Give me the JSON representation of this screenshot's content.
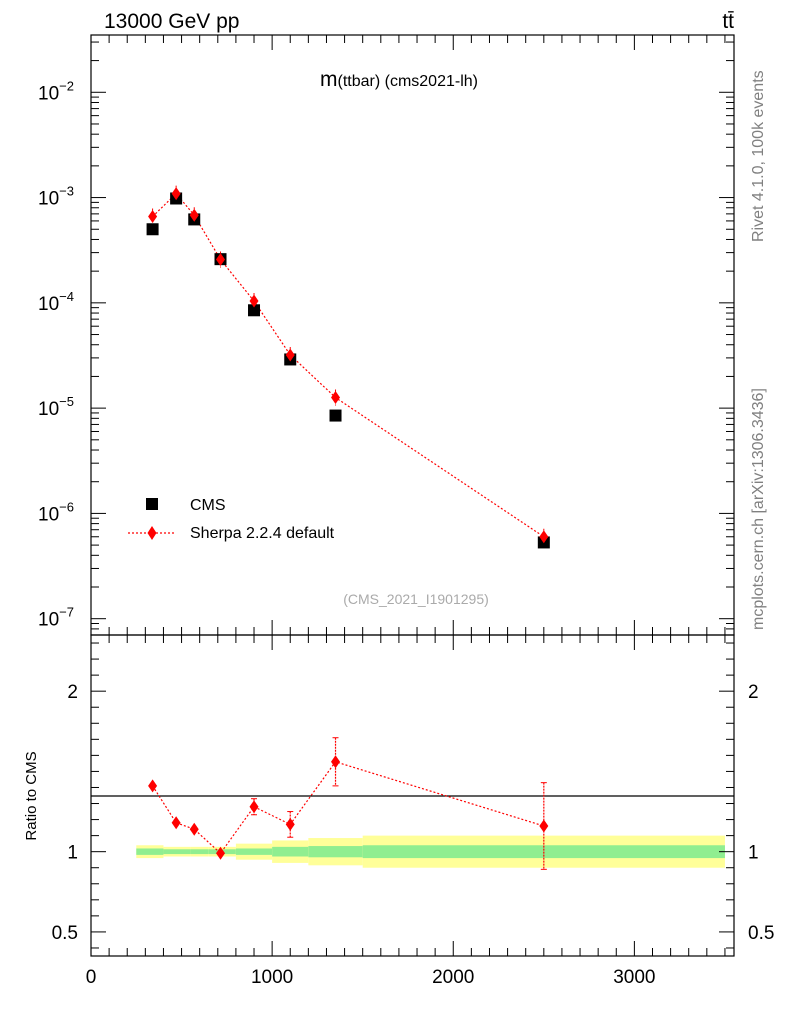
{
  "header": {
    "energy": "13000 GeV pp",
    "process": "tt̄"
  },
  "side_labels": {
    "rivet": "Rivet 4.1.0,  100k events",
    "mcplots": "mcplots.cern.ch [arXiv:1306.3436]"
  },
  "chart_data": [
    {
      "type": "scatter",
      "title": "m(ttbar) (cms2021-lh)",
      "title_main": "m",
      "title_sub": "(ttbar) (cms2021-lh)",
      "watermark": "(CMS_2021_I1901295)",
      "yscale": "log",
      "xlim": [
        0,
        3550
      ],
      "ylim": [
        7e-08,
        0.035
      ],
      "ytick_exponents": [
        -2,
        -3,
        -4,
        -5,
        -6,
        -7
      ],
      "legend": {
        "position": "bottom-left",
        "entries": [
          "CMS",
          "Sherpa 2.2.4 default"
        ]
      },
      "series": [
        {
          "name": "CMS",
          "marker": "square",
          "color": "#000000",
          "x": [
            340,
            470,
            570,
            715,
            900,
            1100,
            1350,
            2500
          ],
          "y": [
            0.0005,
            0.00098,
            0.00062,
            0.00026,
            8.5e-05,
            2.9e-05,
            8.5e-06,
            5.3e-07
          ]
        },
        {
          "name": "Sherpa 2.2.4 default",
          "marker": "diamond",
          "color": "#ff0000",
          "line": "dotted",
          "x": [
            340,
            470,
            570,
            715,
            900,
            1100,
            1350,
            2500
          ],
          "y": [
            0.00066,
            0.00109,
            0.00068,
            0.000258,
            0.000104,
            3.2e-05,
            1.26e-05,
            6e-07
          ]
        }
      ]
    },
    {
      "type": "scatter",
      "ylabel": "Ratio to CMS",
      "xlim": [
        0,
        3550
      ],
      "ylim": [
        0.35,
        2.35
      ],
      "yticks": [
        0.5,
        1,
        2
      ],
      "ytick_labels": [
        "0.5",
        "1",
        "2"
      ],
      "xticks": [
        0,
        1000,
        2000,
        3000
      ],
      "xtick_labels": [
        "0",
        "1000",
        "2000",
        "3000"
      ],
      "bands": {
        "bin_edges": [
          250,
          400,
          550,
          650,
          800,
          1000,
          1200,
          1500,
          3500
        ],
        "stat_half": [
          0.02,
          0.015,
          0.015,
          0.015,
          0.02,
          0.03,
          0.035,
          0.04
        ],
        "total_half": [
          0.04,
          0.03,
          0.03,
          0.03,
          0.05,
          0.07,
          0.085,
          0.1
        ],
        "stat_color": "#90ee90",
        "total_color": "#ffff99"
      },
      "series": [
        {
          "name": "Sherpa 2.2.4 default",
          "color": "#ff0000",
          "x": [
            340,
            470,
            570,
            715,
            900,
            1100,
            1350,
            2500
          ],
          "y": [
            1.41,
            1.18,
            1.14,
            0.99,
            1.28,
            1.17,
            1.56,
            1.16
          ],
          "err": [
            0.02,
            0.02,
            0.02,
            0.03,
            0.05,
            0.08,
            0.15,
            0.27
          ]
        }
      ]
    }
  ]
}
